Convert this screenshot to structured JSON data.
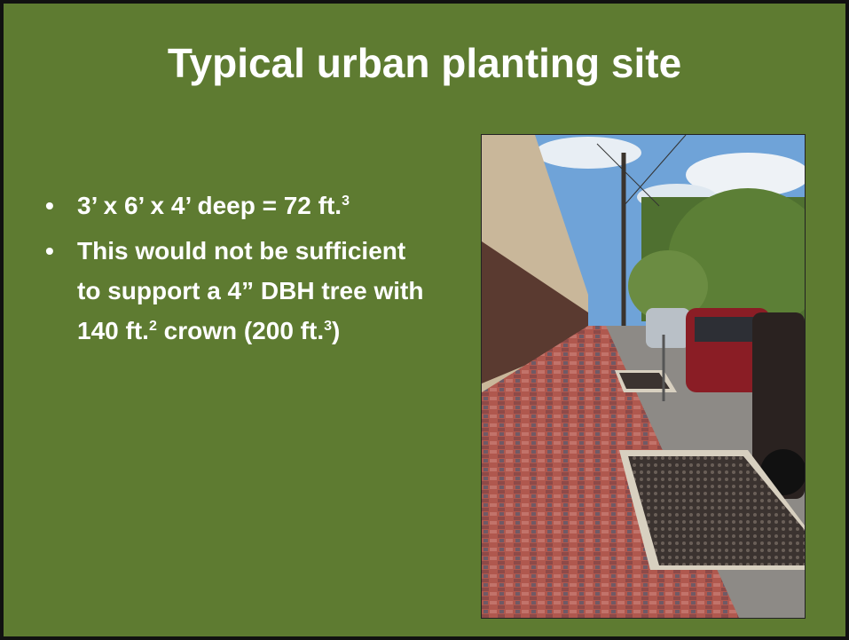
{
  "header": {
    "title": "Typical urban planting site"
  },
  "bullets": [
    [
      {
        "text": "3’ x 6’ x 4’ deep = 72 ft."
      },
      {
        "sup": "3"
      }
    ],
    [
      {
        "text": "This would not be sufficient to support a 4” DBH tree with 140 ft."
      },
      {
        "sup": "2"
      },
      {
        "text": " crown (200 ft."
      },
      {
        "sup": "3"
      },
      {
        "text": ")"
      }
    ]
  ]
}
